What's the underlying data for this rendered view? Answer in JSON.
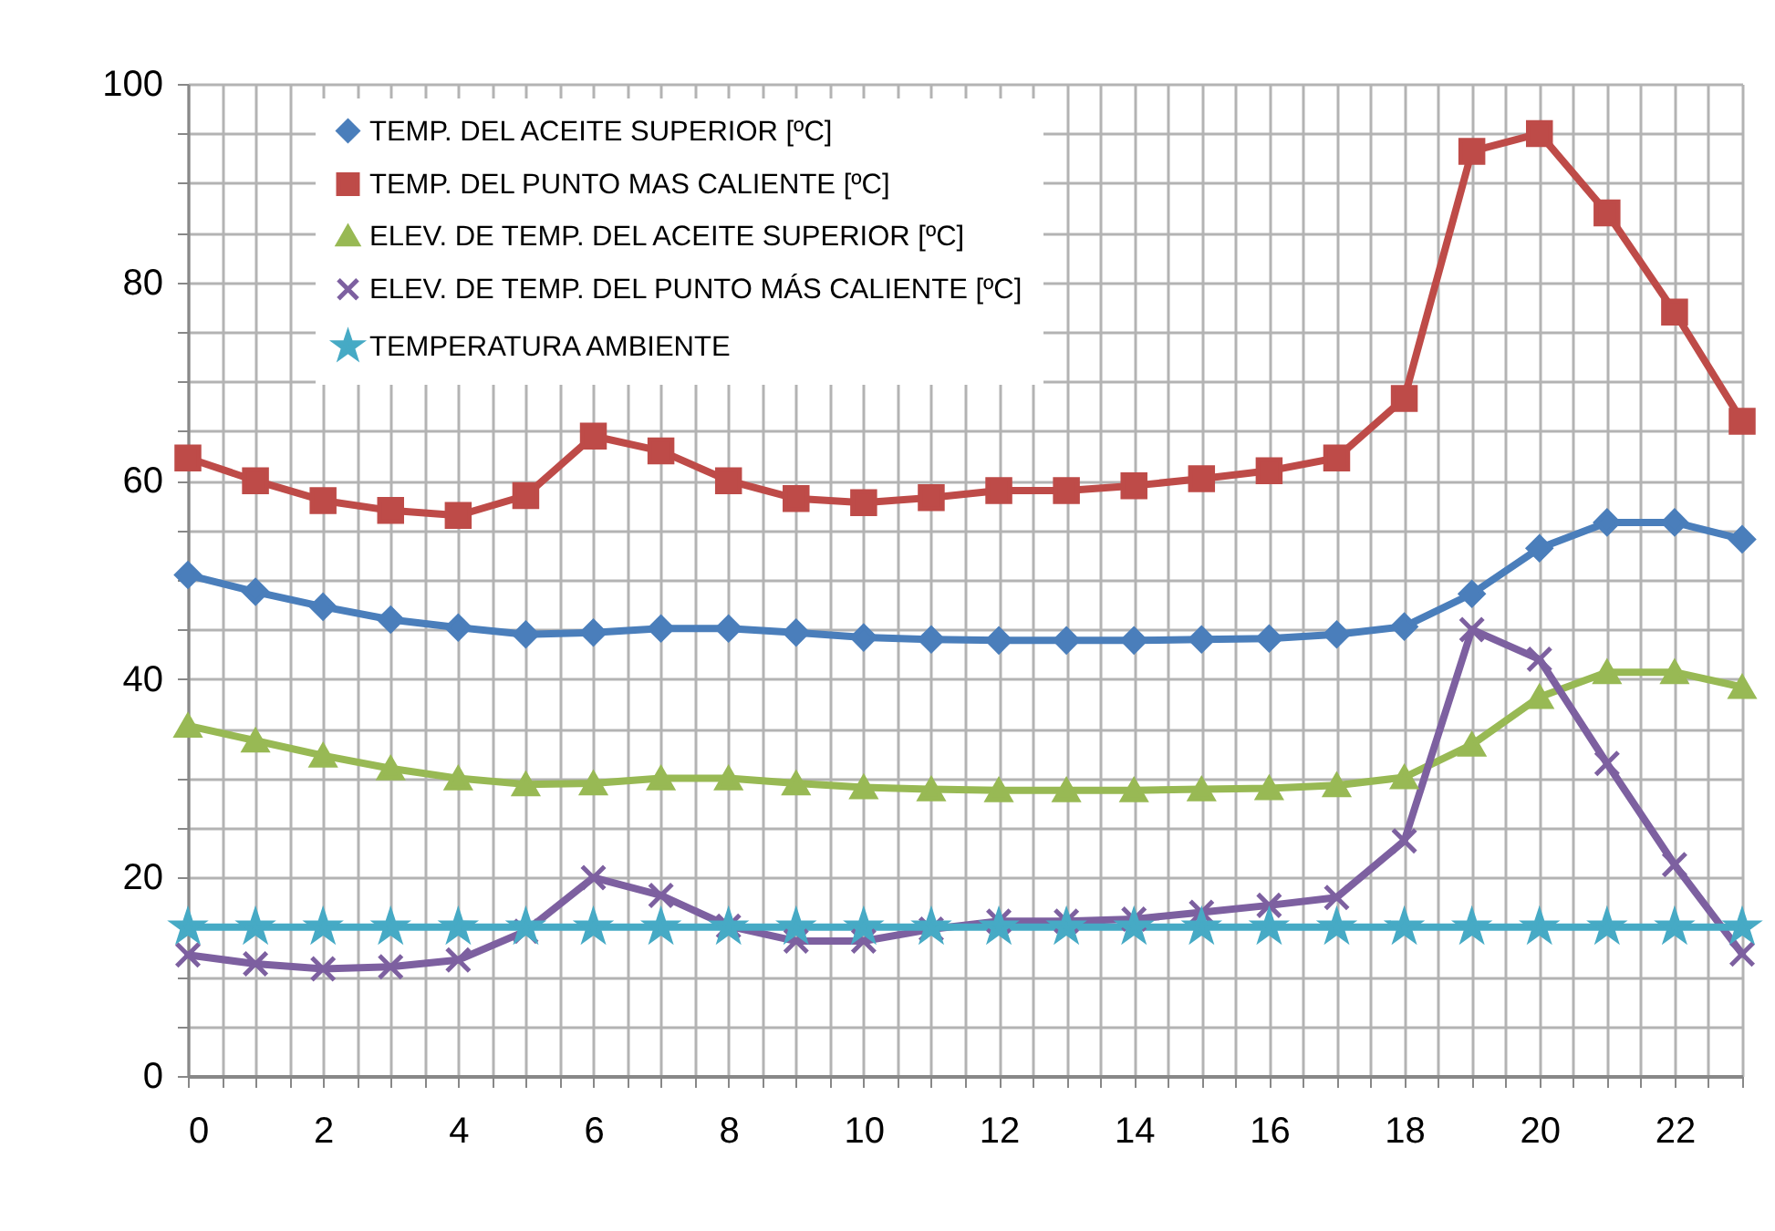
{
  "chart_data": {
    "type": "line",
    "x": [
      0,
      1,
      2,
      3,
      4,
      5,
      6,
      7,
      8,
      9,
      10,
      11,
      12,
      13,
      14,
      15,
      16,
      17,
      18,
      19,
      20,
      21,
      22,
      23
    ],
    "series": [
      {
        "name": "TEMP. DEL ACEITE SUPERIOR [ºC]",
        "color": "#4a7ebb",
        "marker": "diamond",
        "values": [
          50.5,
          48.8,
          47.3,
          46,
          45.2,
          44.5,
          44.7,
          45.1,
          45.1,
          44.7,
          44.2,
          44,
          43.9,
          43.9,
          43.9,
          44,
          44.1,
          44.5,
          45.3,
          48.6,
          53.2,
          55.8,
          55.8,
          54.1
        ]
      },
      {
        "name": "TEMP. DEL PUNTO MAS CALIENTE [ºC]",
        "color": "#be4b48",
        "marker": "square",
        "values": [
          62.3,
          60,
          58,
          57,
          56.5,
          58.5,
          64.5,
          63,
          60,
          58.2,
          57.8,
          58.3,
          59,
          59,
          59.5,
          60.2,
          61,
          62.3,
          68.3,
          93.2,
          95,
          87,
          77,
          66
        ]
      },
      {
        "name": "ELEV. DE TEMP. DEL ACEITE SUPERIOR [ºC]",
        "color": "#98b954",
        "marker": "triangle",
        "values": [
          35.3,
          33.8,
          32.3,
          31,
          30,
          29.4,
          29.5,
          30,
          30,
          29.5,
          29.1,
          28.9,
          28.8,
          28.8,
          28.8,
          28.9,
          29,
          29.3,
          30.1,
          33.4,
          38.2,
          40.7,
          40.7,
          39.2
        ]
      },
      {
        "name": "ELEV. DE TEMP. DEL PUNTO MÁS CALIENTE [ºC]",
        "color": "#7d60a0",
        "marker": "cross",
        "values": [
          12.2,
          11.3,
          10.8,
          11,
          11.7,
          14.6,
          20,
          18.2,
          15.1,
          13.6,
          13.6,
          14.8,
          15.6,
          15.6,
          15.8,
          16.5,
          17.2,
          18,
          23.7,
          45,
          42,
          31.5,
          21.3,
          12.3
        ]
      },
      {
        "name": "TEMPERATURA AMBIENTE",
        "color": "#46aac5",
        "marker": "star",
        "values": [
          15,
          15,
          15,
          15,
          15,
          15,
          15,
          15,
          15,
          15,
          15,
          15,
          15,
          15,
          15,
          15,
          15,
          15,
          15,
          15,
          15,
          15,
          15,
          15
        ]
      }
    ],
    "xlim": [
      0,
      23
    ],
    "xticks": [
      0,
      {
        "value": 0.5,
        "label": null
      },
      {
        "value": 1,
        "label": null
      },
      {
        "value": 1.5,
        "label": null
      },
      2,
      {
        "value": 2.5,
        "label": null
      },
      {
        "value": 3,
        "label": null
      },
      {
        "value": 3.5,
        "label": null
      },
      4,
      {
        "value": 4.5,
        "label": null
      },
      {
        "value": 5,
        "label": null
      },
      {
        "value": 5.5,
        "label": null
      },
      6,
      {
        "value": 6.5,
        "label": null
      },
      {
        "value": 7,
        "label": null
      },
      {
        "value": 7.5,
        "label": null
      },
      8,
      {
        "value": 8.5,
        "label": null
      },
      {
        "value": 9,
        "label": null
      },
      {
        "value": 9.5,
        "label": null
      },
      10,
      {
        "value": 10.5,
        "label": null
      },
      {
        "value": 11,
        "label": null
      },
      {
        "value": 11.5,
        "label": null
      },
      12,
      {
        "value": 12.5,
        "label": null
      },
      {
        "value": 13,
        "label": null
      },
      {
        "value": 13.5,
        "label": null
      },
      14,
      {
        "value": 14.5,
        "label": null
      },
      {
        "value": 15,
        "label": null
      },
      {
        "value": 15.5,
        "label": null
      },
      16,
      {
        "value": 16.5,
        "label": null
      },
      {
        "value": 17,
        "label": null
      },
      {
        "value": 17.5,
        "label": null
      },
      18,
      {
        "value": 18.5,
        "label": null
      },
      {
        "value": 19,
        "label": null
      },
      {
        "value": 19.5,
        "label": null
      },
      20,
      {
        "value": 20.5,
        "label": null
      },
      {
        "value": 21,
        "label": null
      },
      {
        "value": 21.5,
        "label": null
      },
      22,
      {
        "value": 22.5,
        "label": null
      },
      {
        "value": 23,
        "label": null
      }
    ],
    "ylim": [
      0,
      100
    ],
    "yticks": [
      0,
      {
        "value": 5,
        "label": null
      },
      {
        "value": 10,
        "label": null
      },
      {
        "value": 15,
        "label": null
      },
      20,
      {
        "value": 25,
        "label": null
      },
      {
        "value": 30,
        "label": null
      },
      {
        "value": 35,
        "label": null
      },
      40,
      {
        "value": 45,
        "label": null
      },
      {
        "value": 50,
        "label": null
      },
      {
        "value": 55,
        "label": null
      },
      60,
      {
        "value": 65,
        "label": null
      },
      {
        "value": 70,
        "label": null
      },
      {
        "value": 75,
        "label": null
      },
      80,
      {
        "value": 85,
        "label": null
      },
      {
        "value": 90,
        "label": null
      },
      {
        "value": 95,
        "label": null
      },
      100
    ],
    "grid": true,
    "legend": "top left",
    "line_style": "solid"
  }
}
